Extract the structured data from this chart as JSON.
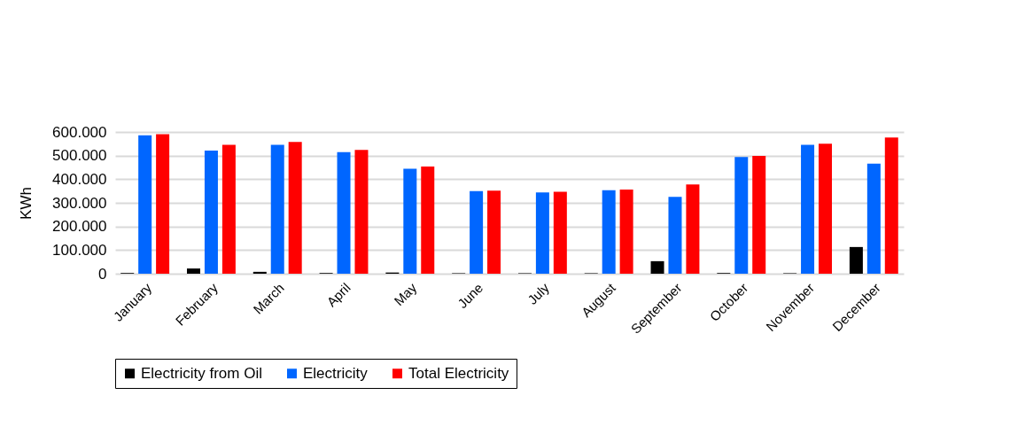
{
  "chart_data": {
    "type": "bar",
    "ylabel": "KWh",
    "categories": [
      "January",
      "February",
      "March",
      "April",
      "May",
      "June",
      "July",
      "August",
      "September",
      "October",
      "November",
      "December"
    ],
    "series": [
      {
        "name": "Electricity from Oil",
        "color": "#000000",
        "values": [
          3000,
          22000,
          8000,
          3000,
          5000,
          2000,
          2000,
          2000,
          53000,
          3000,
          2000,
          113000
        ]
      },
      {
        "name": "Electricity",
        "color": "#0066ff",
        "values": [
          586000,
          521000,
          546000,
          515000,
          444000,
          350000,
          344000,
          353000,
          325000,
          494000,
          546000,
          466000
        ]
      },
      {
        "name": "Total Electricity",
        "color": "#ff0000",
        "values": [
          591000,
          546000,
          558000,
          524000,
          454000,
          352000,
          347000,
          356000,
          378000,
          499000,
          550000,
          577000
        ]
      }
    ],
    "ylim": [
      0,
      600000
    ],
    "yticks": [
      {
        "value": 0,
        "label": "0"
      },
      {
        "value": 100000,
        "label": "100.000"
      },
      {
        "value": 200000,
        "label": "200.000"
      },
      {
        "value": 300000,
        "label": "300.000"
      },
      {
        "value": 400000,
        "label": "400.000"
      },
      {
        "value": 500000,
        "label": "500.000"
      },
      {
        "value": 600000,
        "label": "600.000"
      }
    ],
    "grid": "y",
    "legend": "bottom"
  }
}
